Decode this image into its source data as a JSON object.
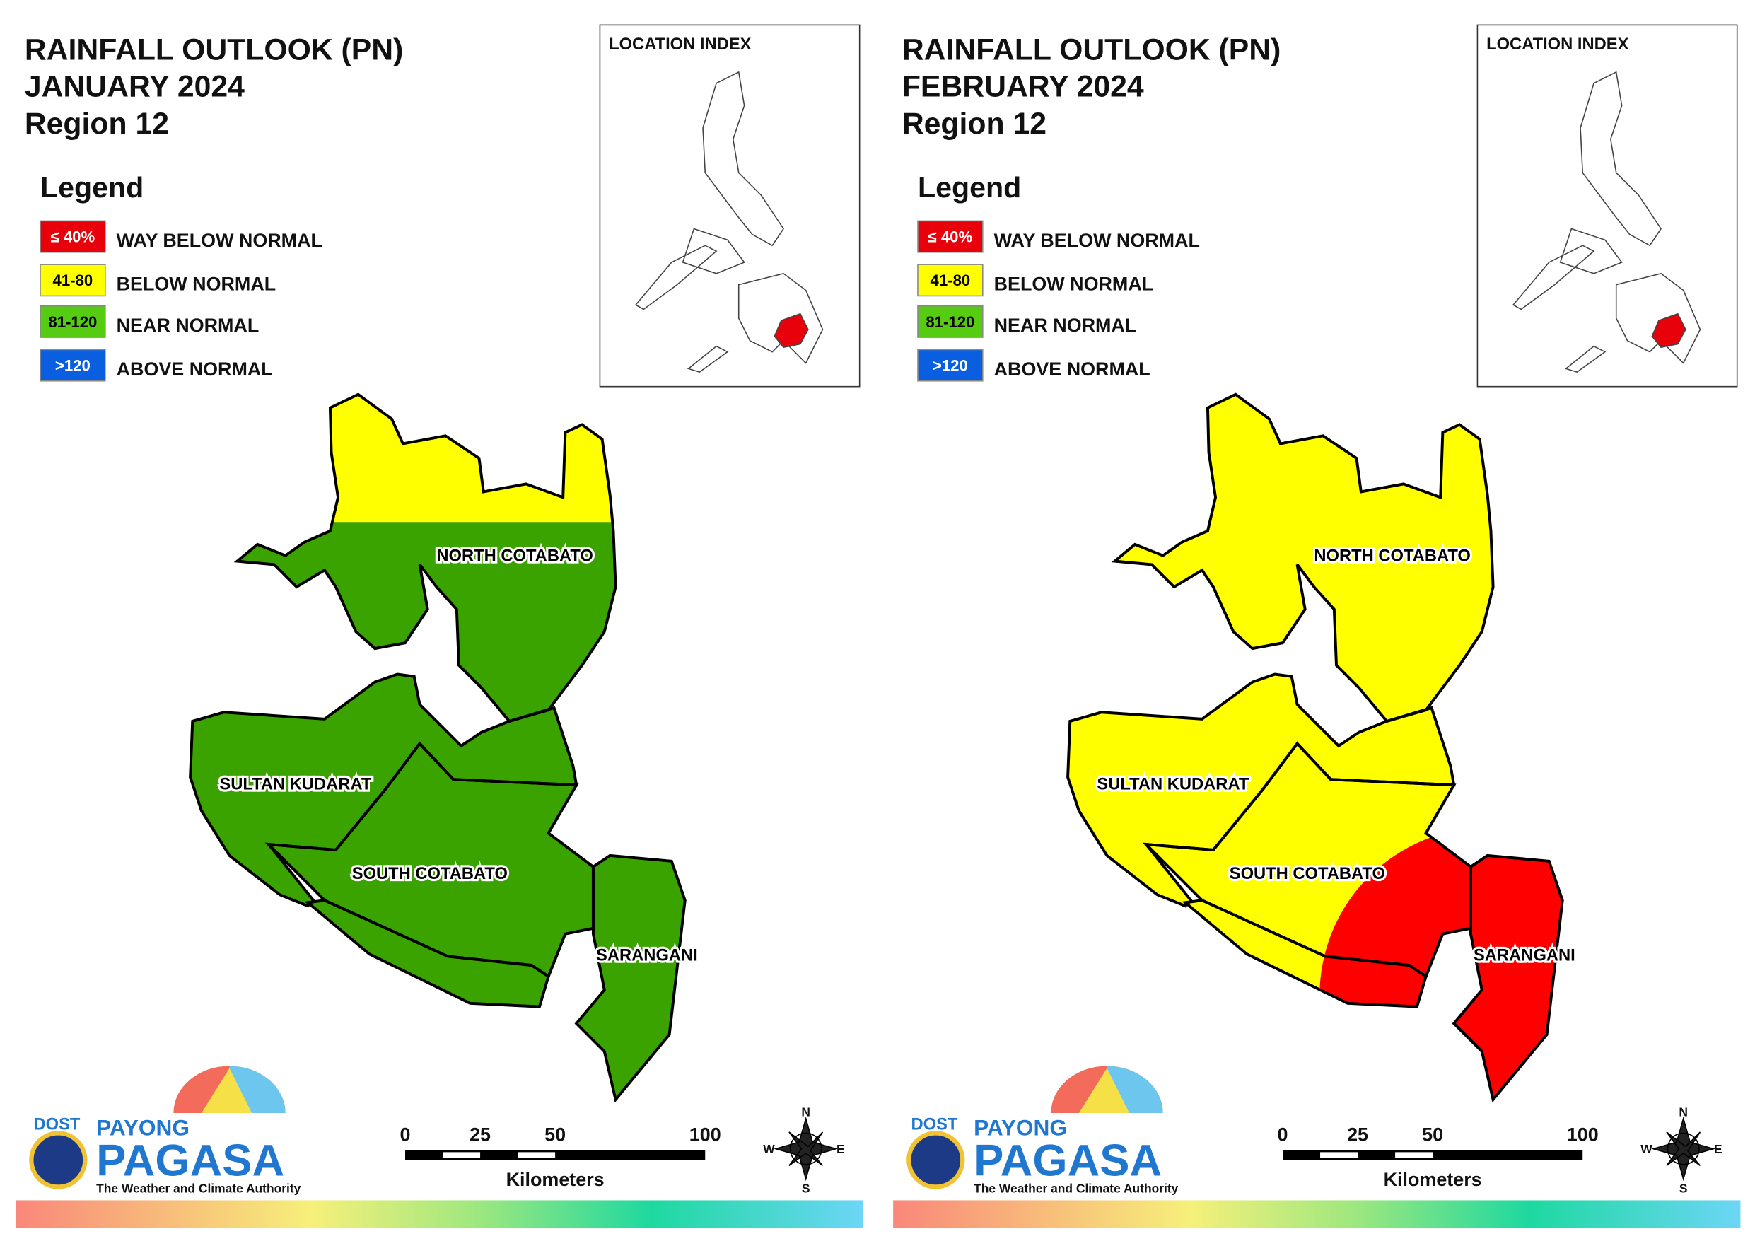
{
  "panels": [
    {
      "title": [
        "RAINFALL OUTLOOK (PN)",
        "JANUARY 2024",
        "Region 12"
      ],
      "legend": {
        "title": "Legend",
        "items": [
          {
            "label": "≤ 40%",
            "text": "WAY BELOW NORMAL",
            "color": "#e8000b"
          },
          {
            "label": "41-80",
            "text": "BELOW NORMAL",
            "color": "#ffff00"
          },
          {
            "label": "81-120",
            "text": "NEAR NORMAL",
            "color": "#55cc11"
          },
          {
            "label": ">120",
            "text": "ABOVE NORMAL",
            "color": "#0a5fe0"
          }
        ]
      },
      "location_index": "LOCATION INDEX",
      "provinces": [
        "NORTH COTABATO",
        "SULTAN KUDARAT",
        "SOUTH COTABATO",
        "SARANGANI"
      ],
      "scale": {
        "ticks": [
          0,
          25,
          50,
          100
        ],
        "unit": "Kilometers"
      },
      "compass": [
        "N",
        "E",
        "S",
        "W"
      ],
      "logo": {
        "org": "DOST",
        "name": "PAYONG",
        "brand": "PAGASA",
        "tagline": "The Weather and Climate Authority"
      }
    },
    {
      "title": [
        "RAINFALL OUTLOOK (PN)",
        "FEBRUARY 2024",
        "Region 12"
      ],
      "legend": {
        "title": "Legend",
        "items": [
          {
            "label": "≤ 40%",
            "text": "WAY BELOW NORMAL",
            "color": "#e8000b"
          },
          {
            "label": "41-80",
            "text": "BELOW NORMAL",
            "color": "#ffff00"
          },
          {
            "label": "81-120",
            "text": "NEAR NORMAL",
            "color": "#55cc11"
          },
          {
            "label": ">120",
            "text": "ABOVE NORMAL",
            "color": "#0a5fe0"
          }
        ]
      },
      "location_index": "LOCATION INDEX",
      "provinces": [
        "NORTH COTABATO",
        "SULTAN KUDARAT",
        "SOUTH COTABATO",
        "SARANGANI"
      ],
      "scale": {
        "ticks": [
          0,
          25,
          50,
          100
        ],
        "unit": "Kilometers"
      },
      "compass": [
        "N",
        "E",
        "S",
        "W"
      ],
      "logo": {
        "org": "DOST",
        "name": "PAYONG",
        "brand": "PAGASA",
        "tagline": "The Weather and Climate Authority"
      }
    }
  ]
}
